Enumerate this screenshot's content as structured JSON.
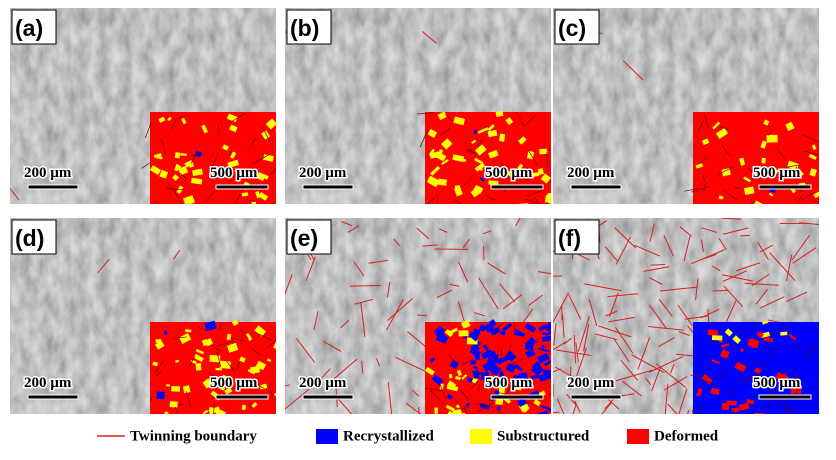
{
  "panels": [
    {
      "label": "(a)",
      "scale_main": "200 µm",
      "scale_inset": "500 µm"
    },
    {
      "label": "(b)",
      "scale_main": "200 µm",
      "scale_inset": "500 µm"
    },
    {
      "label": "(c)",
      "scale_main": "200 µm",
      "scale_inset": "500 µm"
    },
    {
      "label": "(d)",
      "scale_main": "200 µm",
      "scale_inset": "500 µm"
    },
    {
      "label": "(e)",
      "scale_main": "200 µm",
      "scale_inset": "500 µm"
    },
    {
      "label": "(f)",
      "scale_main": "200 µm",
      "scale_inset": "500 µm"
    }
  ],
  "legend": [
    "Twinning boundary",
    "Recrystallized",
    "Substructured",
    "Deformed"
  ]
}
